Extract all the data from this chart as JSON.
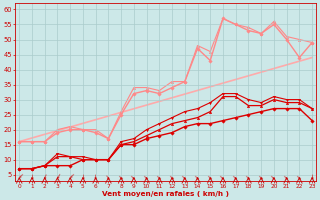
{
  "background_color": "#cce8e8",
  "grid_color": "#aacccc",
  "text_color": "#cc0000",
  "xlabel": "Vent moyen/en rafales ( km/h )",
  "x_ticks": [
    0,
    1,
    2,
    3,
    4,
    5,
    6,
    7,
    8,
    9,
    10,
    11,
    12,
    13,
    14,
    15,
    16,
    17,
    18,
    19,
    20,
    21,
    22,
    23
  ],
  "y_ticks": [
    5,
    10,
    15,
    20,
    25,
    30,
    35,
    40,
    45,
    50,
    55,
    60
  ],
  "ylim": [
    3,
    62
  ],
  "xlim": [
    -0.3,
    23.3
  ],
  "series": [
    {
      "x": [
        0,
        1,
        2,
        3,
        4,
        5,
        6,
        7,
        8,
        9,
        10,
        11,
        12,
        13,
        14,
        15,
        16,
        17,
        18,
        19,
        20,
        21,
        22,
        23
      ],
      "y": [
        7,
        7,
        8,
        8,
        8,
        10,
        10,
        10,
        15,
        15,
        17,
        18,
        19,
        21,
        22,
        22,
        23,
        24,
        25,
        26,
        27,
        27,
        27,
        23
      ],
      "color": "#dd0000",
      "lw": 1.0,
      "marker": "D",
      "ms": 1.8,
      "zorder": 5
    },
    {
      "x": [
        0,
        1,
        2,
        3,
        4,
        5,
        6,
        7,
        8,
        9,
        10,
        11,
        12,
        13,
        14,
        15,
        16,
        17,
        18,
        19,
        20,
        21,
        22,
        23
      ],
      "y": [
        7,
        7,
        8,
        11,
        11,
        10,
        10,
        10,
        15,
        16,
        18,
        20,
        22,
        23,
        24,
        26,
        31,
        31,
        28,
        28,
        30,
        29,
        29,
        27
      ],
      "color": "#dd0000",
      "lw": 0.9,
      "marker": "^",
      "ms": 1.8,
      "zorder": 4
    },
    {
      "x": [
        0,
        1,
        2,
        3,
        4,
        5,
        6,
        7,
        8,
        9,
        10,
        11,
        12,
        13,
        14,
        15,
        16,
        17,
        18,
        19,
        20,
        21,
        22,
        23
      ],
      "y": [
        7,
        7,
        8,
        12,
        11,
        11,
        10,
        10,
        16,
        17,
        20,
        22,
        24,
        26,
        27,
        29,
        32,
        32,
        30,
        29,
        31,
        30,
        30,
        27
      ],
      "color": "#dd0000",
      "lw": 0.8,
      "marker": "v",
      "ms": 1.8,
      "zorder": 3
    },
    {
      "x": [
        0,
        1,
        2,
        3,
        4,
        5,
        6,
        7,
        8,
        9,
        10,
        11,
        12,
        13,
        14,
        15,
        16,
        17,
        18,
        19,
        20,
        21,
        22,
        23
      ],
      "y": [
        16,
        16,
        16,
        19,
        20,
        20,
        19,
        17,
        25,
        32,
        33,
        32,
        34,
        36,
        47,
        43,
        57,
        55,
        53,
        52,
        55,
        50,
        44,
        49
      ],
      "color": "#ff8888",
      "lw": 1.0,
      "marker": "D",
      "ms": 1.8,
      "zorder": 2
    },
    {
      "x": [
        0,
        1,
        2,
        3,
        4,
        5,
        6,
        7,
        8,
        9,
        10,
        11,
        12,
        13,
        14,
        15,
        16,
        17,
        18,
        19,
        20,
        21,
        22,
        23
      ],
      "y": [
        16,
        16,
        16,
        20,
        21,
        20,
        20,
        17,
        26,
        34,
        34,
        33,
        36,
        36,
        48,
        46,
        57,
        55,
        54,
        52,
        56,
        51,
        50,
        49
      ],
      "color": "#ff8888",
      "lw": 0.8,
      "marker": "^",
      "ms": 1.8,
      "zorder": 1
    },
    {
      "x": [
        0,
        23
      ],
      "y": [
        16,
        44
      ],
      "color": "#ffaaaa",
      "lw": 1.2,
      "marker": null,
      "ms": 0,
      "zorder": 0
    }
  ],
  "wind_arrows_x": [
    0,
    1,
    2,
    3,
    4,
    5,
    6,
    7,
    8,
    9,
    10,
    11,
    12,
    13,
    14,
    15,
    16,
    17,
    18,
    19,
    20,
    21,
    22,
    23
  ],
  "wind_arrow_rotations": [
    225,
    270,
    250,
    240,
    225,
    270,
    270,
    300,
    315,
    315,
    315,
    315,
    315,
    315,
    315,
    315,
    315,
    315,
    315,
    315,
    315,
    315,
    315,
    270
  ]
}
